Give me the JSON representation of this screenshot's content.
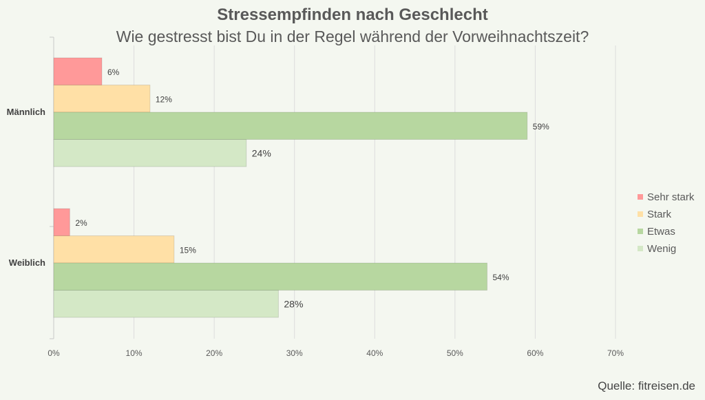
{
  "chart_data": {
    "type": "bar",
    "orientation": "horizontal",
    "title": "Stressempfinden nach Geschlecht",
    "subtitle": "Wie gestresst bist Du in der Regel während der Vorweihnachtszeit?",
    "categories": [
      "Männlich",
      "Weiblich"
    ],
    "series": [
      {
        "name": "Sehr stark",
        "color": "#ff9999",
        "values": [
          6,
          2
        ],
        "labels": [
          "6%",
          "2%"
        ]
      },
      {
        "name": "Stark",
        "color": "#ffe0a6",
        "values": [
          12,
          15
        ],
        "labels": [
          "12%",
          "15%"
        ]
      },
      {
        "name": "Etwas",
        "color": "#b7d7a0",
        "values": [
          59,
          54
        ],
        "labels": [
          "59%",
          "54%"
        ]
      },
      {
        "name": "Wenig",
        "color": "#d4e8c6",
        "values": [
          24,
          28
        ],
        "labels": [
          "24%",
          "28%"
        ]
      }
    ],
    "xlim": [
      0,
      70
    ],
    "xticks": [
      "0%",
      "10%",
      "20%",
      "30%",
      "40%",
      "50%",
      "60%",
      "70%"
    ],
    "grid": true,
    "legend": "right"
  },
  "source": "Quelle: fitreisen.de"
}
